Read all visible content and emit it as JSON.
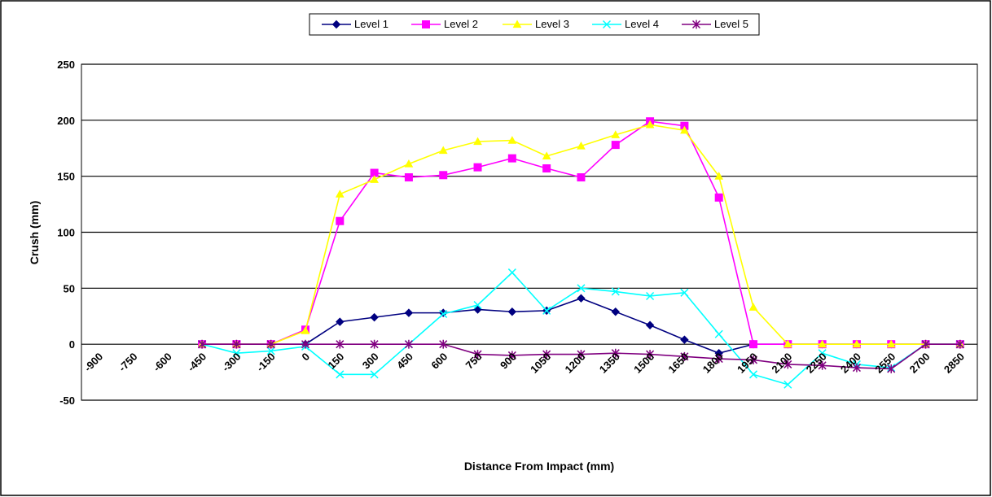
{
  "chart_data": {
    "type": "line",
    "title": "",
    "xlabel": "Distance From Impact (mm)",
    "ylabel": "Crush (mm)",
    "ylim": [
      -50,
      250
    ],
    "yticks": [
      -50,
      0,
      50,
      100,
      150,
      200,
      250
    ],
    "x": [
      -900,
      -750,
      -600,
      -450,
      -300,
      -150,
      0,
      150,
      300,
      450,
      600,
      750,
      900,
      1050,
      1200,
      1350,
      1500,
      1650,
      1800,
      1950,
      2100,
      2250,
      2400,
      2550,
      2700,
      2850
    ],
    "x_tick_labels": [
      "-900",
      "-750",
      "-600",
      "-450",
      "-300",
      "-150",
      "0",
      "150",
      "300",
      "450",
      "600",
      "750",
      "900",
      "1050",
      "1200",
      "1350",
      "1500",
      "1650",
      "1800",
      "1950",
      "2100",
      "2250",
      "2400",
      "2550",
      "2700",
      "2850"
    ],
    "grid": "horizontal",
    "legend_position": "top",
    "series": [
      {
        "name": "Level 1",
        "color": "#000080",
        "marker": "diamond",
        "values": [
          null,
          null,
          null,
          0,
          0,
          0,
          0,
          20,
          24,
          28,
          28,
          31,
          29,
          30,
          41,
          29,
          17,
          4,
          -8,
          0,
          0,
          0,
          0,
          0,
          0,
          0
        ]
      },
      {
        "name": "Level 2",
        "color": "#ff00ff",
        "marker": "square",
        "values": [
          null,
          null,
          null,
          0,
          0,
          0,
          13,
          110,
          153,
          149,
          151,
          158,
          166,
          157,
          149,
          178,
          199,
          195,
          131,
          0,
          0,
          0,
          0,
          0,
          0,
          0
        ]
      },
      {
        "name": "Level 3",
        "color": "#ffff00",
        "marker": "triangle",
        "values": [
          null,
          null,
          null,
          0,
          0,
          0,
          12,
          134,
          147,
          161,
          173,
          181,
          182,
          168,
          177,
          187,
          196,
          191,
          150,
          33,
          0,
          0,
          0,
          0,
          0,
          0
        ]
      },
      {
        "name": "Level 4",
        "color": "#00ffff",
        "marker": "x",
        "values": [
          null,
          null,
          null,
          0,
          -8,
          -6,
          -2,
          -27,
          -27,
          0,
          27,
          35,
          64,
          30,
          50,
          47,
          43,
          46,
          9,
          -27,
          -36,
          -8,
          -18,
          -21,
          0,
          0
        ]
      },
      {
        "name": "Level 5",
        "color": "#800080",
        "marker": "star",
        "values": [
          null,
          null,
          null,
          0,
          0,
          0,
          0,
          0,
          0,
          0,
          0,
          -9,
          -10,
          -9,
          -9,
          -8,
          -9,
          -11,
          -13,
          -14,
          -18,
          -19,
          -21,
          -22,
          0,
          0
        ]
      }
    ]
  }
}
